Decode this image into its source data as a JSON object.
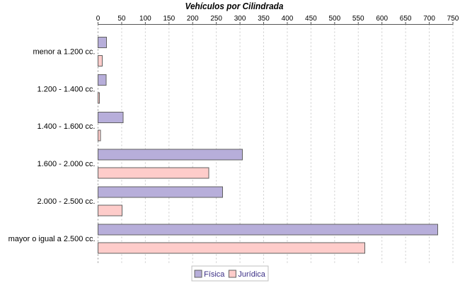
{
  "chart_data": {
    "type": "bar",
    "orientation": "horizontal",
    "title": "Vehículos por Cilindrada",
    "categories": [
      "menor a 1.200 cc.",
      "1.200 - 1.400 cc.",
      "1.400 - 1.600 cc.",
      "1.600 - 2.000 cc.",
      "2.000 - 2.500 cc.",
      "mayor o igual a 2.500 cc."
    ],
    "series": [
      {
        "name": "Física",
        "color": "#B7AEDA",
        "values": [
          18,
          17,
          53,
          305,
          263,
          718
        ]
      },
      {
        "name": "Jurídica",
        "color": "#FECCCA",
        "values": [
          9,
          3,
          5,
          234,
          51,
          564
        ]
      }
    ],
    "xlim": [
      0,
      750
    ],
    "x_tick_step": 50,
    "x_tick_labels": [
      "0",
      "50",
      "100",
      "150",
      "200",
      "250",
      "300",
      "350",
      "400",
      "450",
      "500",
      "550",
      "600",
      "650",
      "700",
      "750"
    ],
    "axis_position": "top",
    "grid": "dashed-vertical",
    "legend_position": "bottom",
    "colors": {
      "background": "#FFFFFF",
      "bar_border": "#606060",
      "gridline": "#C9C9C9",
      "zero_gridline": "#8F8F8F",
      "axis_line": "#555555",
      "title_text": "#000000",
      "label_text": "#000000",
      "legend_text": "#3A2E85",
      "legend_border": "#BFBFBF"
    }
  }
}
